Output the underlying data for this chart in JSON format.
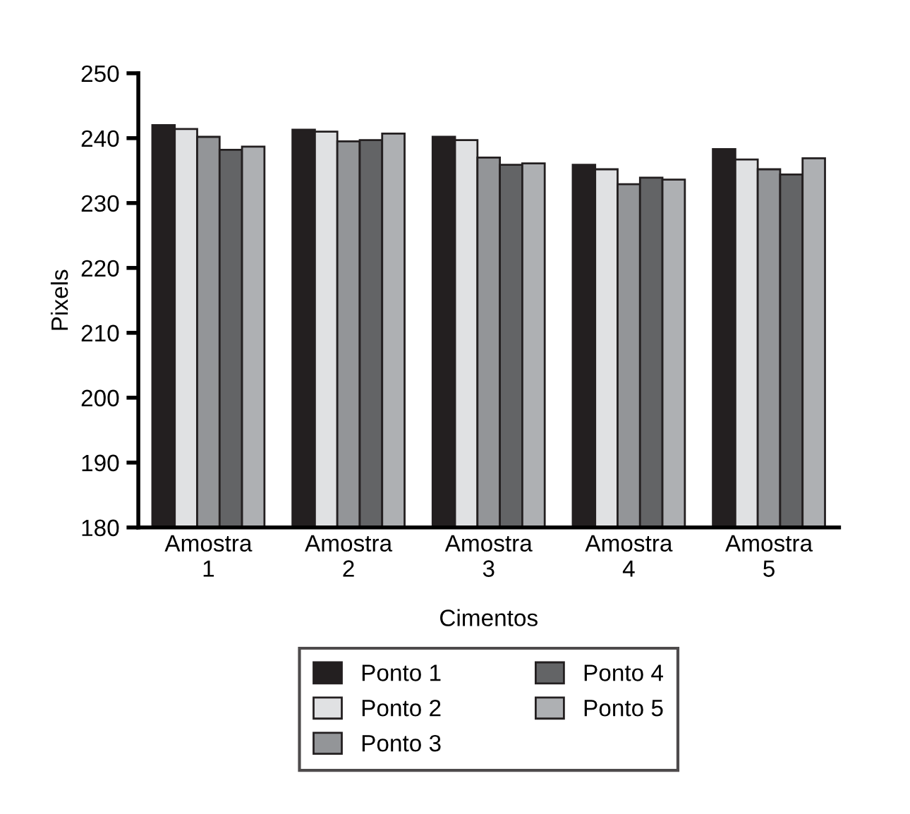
{
  "chart_data": {
    "type": "bar",
    "xlabel": "Cimentos",
    "ylabel": "Pixels",
    "categories": [
      "Amostra\n1",
      "Amostra\n2",
      "Amostra\n3",
      "Amostra\n4",
      "Amostra\n5"
    ],
    "series": [
      {
        "name": "Ponto 1",
        "color": "#231f20",
        "values": [
          242.0,
          241.3,
          240.2,
          235.9,
          238.3
        ]
      },
      {
        "name": "Ponto 2",
        "color": "#e0e1e3",
        "values": [
          241.4,
          241.0,
          239.7,
          235.2,
          236.7
        ]
      },
      {
        "name": "Ponto 3",
        "color": "#939598",
        "values": [
          240.2,
          239.5,
          237.0,
          232.9,
          235.2
        ]
      },
      {
        "name": "Ponto 4",
        "color": "#636466",
        "values": [
          238.2,
          239.7,
          235.9,
          233.9,
          234.4
        ]
      },
      {
        "name": "Ponto 5",
        "color": "#aeb0b3",
        "values": [
          238.7,
          240.7,
          236.1,
          233.6,
          236.9
        ]
      }
    ],
    "ylim": [
      180,
      250
    ],
    "yticks": [
      180,
      190,
      200,
      210,
      220,
      230,
      240,
      250
    ],
    "grid": false,
    "legend": "bottom"
  }
}
